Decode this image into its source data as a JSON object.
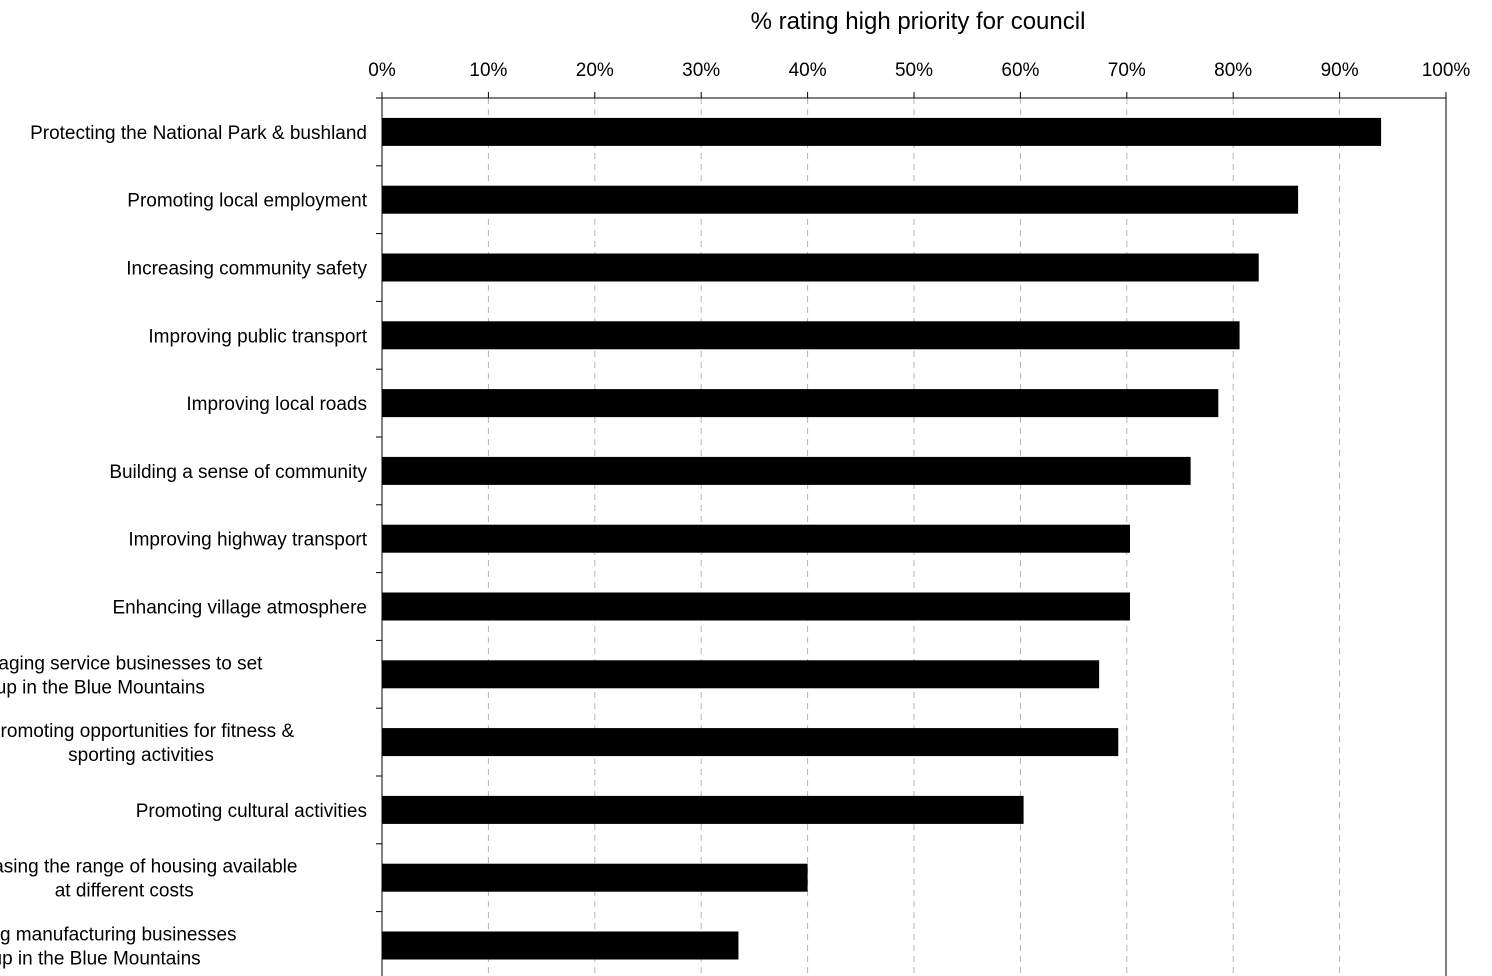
{
  "chart_data": {
    "type": "bar",
    "orientation": "horizontal",
    "title": "% rating high priority for council",
    "xlim": [
      0,
      100
    ],
    "tick_values": [
      0,
      10,
      20,
      30,
      40,
      50,
      60,
      70,
      80,
      90,
      100
    ],
    "tick_labels": [
      "0%",
      "10%",
      "20%",
      "30%",
      "40%",
      "50%",
      "60%",
      "70%",
      "80%",
      "90%",
      "100%"
    ],
    "grid": "vertical dashed",
    "bar_color": "#000000",
    "categories": [
      [
        "Protecting the National Park & bushland"
      ],
      [
        "Promoting local employment"
      ],
      [
        "Increasing community safety"
      ],
      [
        "Improving public transport"
      ],
      [
        "Improving local roads"
      ],
      [
        "Building a sense of community"
      ],
      [
        "Improving highway transport"
      ],
      [
        "Enhancing village atmosphere"
      ],
      [
        "Encouraging service businesses to set",
        "up in the Blue Mountains"
      ],
      [
        "Promoting opportunities for fitness &",
        "sporting activities"
      ],
      [
        "Promoting cultural activities"
      ],
      [
        "Increasing the range of housing available",
        "at different costs"
      ],
      [
        "Encouraging manufacturing businesses",
        "to set up in the Blue Mountains"
      ]
    ],
    "values": [
      93.9,
      86.1,
      82.4,
      80.6,
      78.6,
      76.0,
      70.3,
      70.3,
      67.4,
      69.2,
      60.3,
      40.0,
      33.5
    ]
  }
}
